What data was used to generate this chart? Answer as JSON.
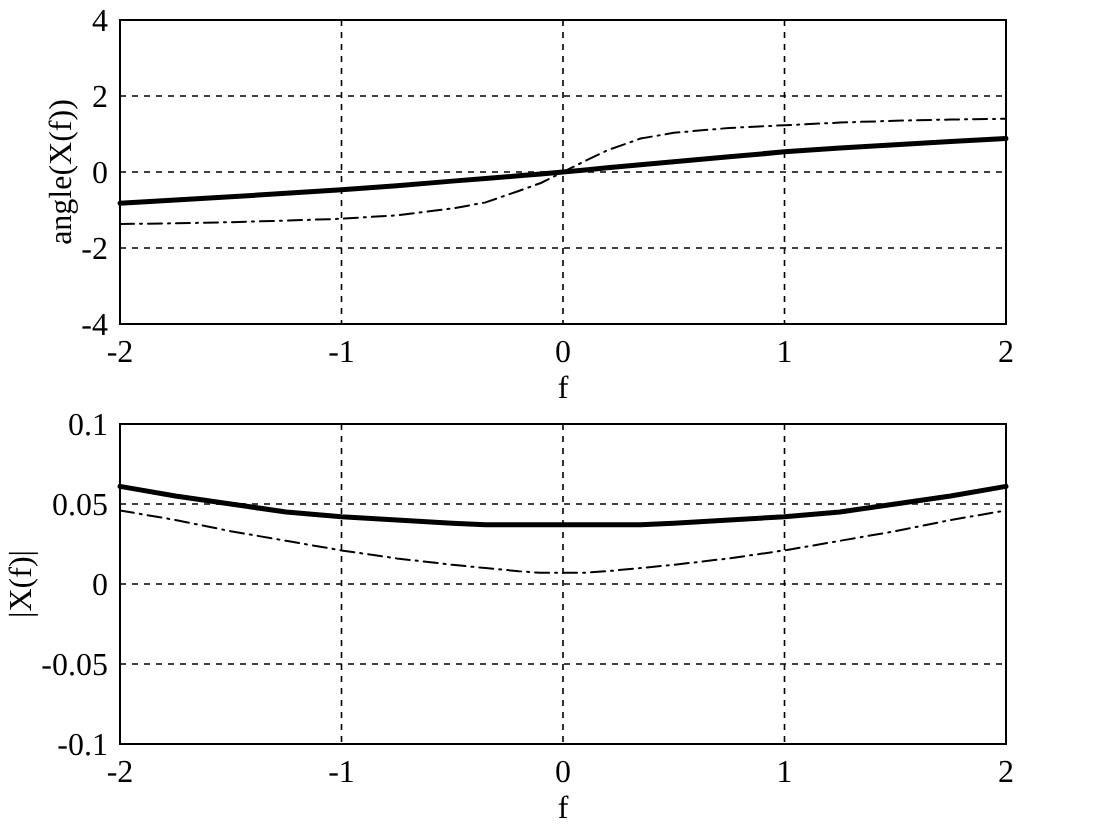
{
  "chart_data": [
    {
      "type": "line",
      "xlabel": "f",
      "ylabel": "angle(X(f))",
      "x": [
        -2,
        -1.75,
        -1.5,
        -1.25,
        -1,
        -0.75,
        -0.5,
        -0.35,
        -0.2,
        -0.1,
        0,
        0.1,
        0.2,
        0.35,
        0.5,
        0.75,
        1,
        1.25,
        1.5,
        1.75,
        2
      ],
      "xlim": [
        -2,
        2
      ],
      "xticks": [
        -2,
        -1,
        0,
        1,
        2
      ],
      "ylim": [
        -4,
        4
      ],
      "yticks": [
        -4,
        -2,
        0,
        2,
        4
      ],
      "grid": true,
      "series": [
        {
          "color": "#000000",
          "line_style": "solid",
          "values": [
            -0.82,
            -0.74,
            -0.65,
            -0.56,
            -0.47,
            -0.36,
            -0.24,
            -0.17,
            -0.1,
            -0.05,
            0,
            0.05,
            0.11,
            0.19,
            0.27,
            0.4,
            0.53,
            0.63,
            0.72,
            0.8,
            0.88
          ]
        },
        {
          "color": "#000000",
          "line_style": "dashdot",
          "values": [
            -1.37,
            -1.35,
            -1.32,
            -1.28,
            -1.23,
            -1.14,
            -0.96,
            -0.8,
            -0.5,
            -0.29,
            0,
            0.29,
            0.57,
            0.88,
            1.03,
            1.16,
            1.23,
            1.3,
            1.35,
            1.38,
            1.4
          ]
        }
      ]
    },
    {
      "type": "line",
      "xlabel": "f",
      "ylabel": "|X(f)|",
      "x": [
        -2,
        -1.75,
        -1.5,
        -1.25,
        -1,
        -0.75,
        -0.5,
        -0.35,
        -0.2,
        -0.1,
        0,
        0.1,
        0.2,
        0.35,
        0.5,
        0.75,
        1,
        1.25,
        1.5,
        1.75,
        2
      ],
      "xlim": [
        -2,
        2
      ],
      "xticks": [
        -2,
        -1,
        0,
        1,
        2
      ],
      "ylim": [
        -0.1,
        0.1
      ],
      "yticks": [
        -0.1,
        -0.05,
        0,
        0.05,
        0.1
      ],
      "grid": true,
      "series": [
        {
          "color": "#000000",
          "line_style": "solid",
          "values": [
            0.061,
            0.055,
            0.05,
            0.045,
            0.042,
            0.04,
            0.038,
            0.037,
            0.037,
            0.037,
            0.037,
            0.037,
            0.037,
            0.037,
            0.038,
            0.04,
            0.042,
            0.045,
            0.05,
            0.055,
            0.061
          ]
        },
        {
          "color": "#000000",
          "line_style": "dashdot",
          "values": [
            0.046,
            0.04,
            0.033,
            0.027,
            0.021,
            0.016,
            0.012,
            0.01,
            0.008,
            0.007,
            0.007,
            0.007,
            0.008,
            0.01,
            0.012,
            0.016,
            0.021,
            0.027,
            0.033,
            0.04,
            0.046
          ]
        }
      ]
    }
  ]
}
